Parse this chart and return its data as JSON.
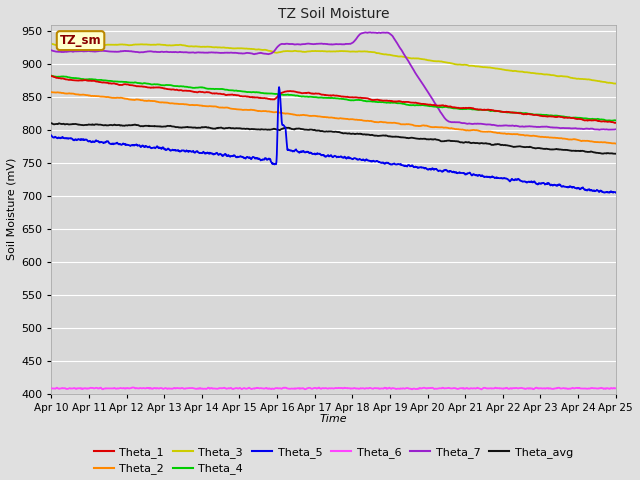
{
  "title": "TZ Soil Moisture",
  "xlabel": "Time",
  "ylabel": "Soil Moisture (mV)",
  "ylim": [
    400,
    960
  ],
  "yticks": [
    400,
    450,
    500,
    550,
    600,
    650,
    700,
    750,
    800,
    850,
    900,
    950
  ],
  "x_labels": [
    "Apr 10",
    "Apr 11",
    "Apr 12",
    "Apr 13",
    "Apr 14",
    "Apr 15",
    "Apr 16",
    "Apr 17",
    "Apr 18",
    "Apr 19",
    "Apr 20",
    "Apr 21",
    "Apr 22",
    "Apr 23",
    "Apr 24",
    "Apr 25"
  ],
  "colors": {
    "Theta_1": "#dd0000",
    "Theta_2": "#ff8800",
    "Theta_3": "#cccc00",
    "Theta_4": "#00cc00",
    "Theta_5": "#0000ee",
    "Theta_6": "#ff44ff",
    "Theta_7": "#9922cc",
    "Theta_avg": "#111111"
  },
  "background_color": "#e0e0e0",
  "plot_bg": "#d8d8d8",
  "grid_color": "#ffffff",
  "label_box": "TZ_sm",
  "label_box_bg": "#ffffcc",
  "label_box_border": "#bb8800"
}
